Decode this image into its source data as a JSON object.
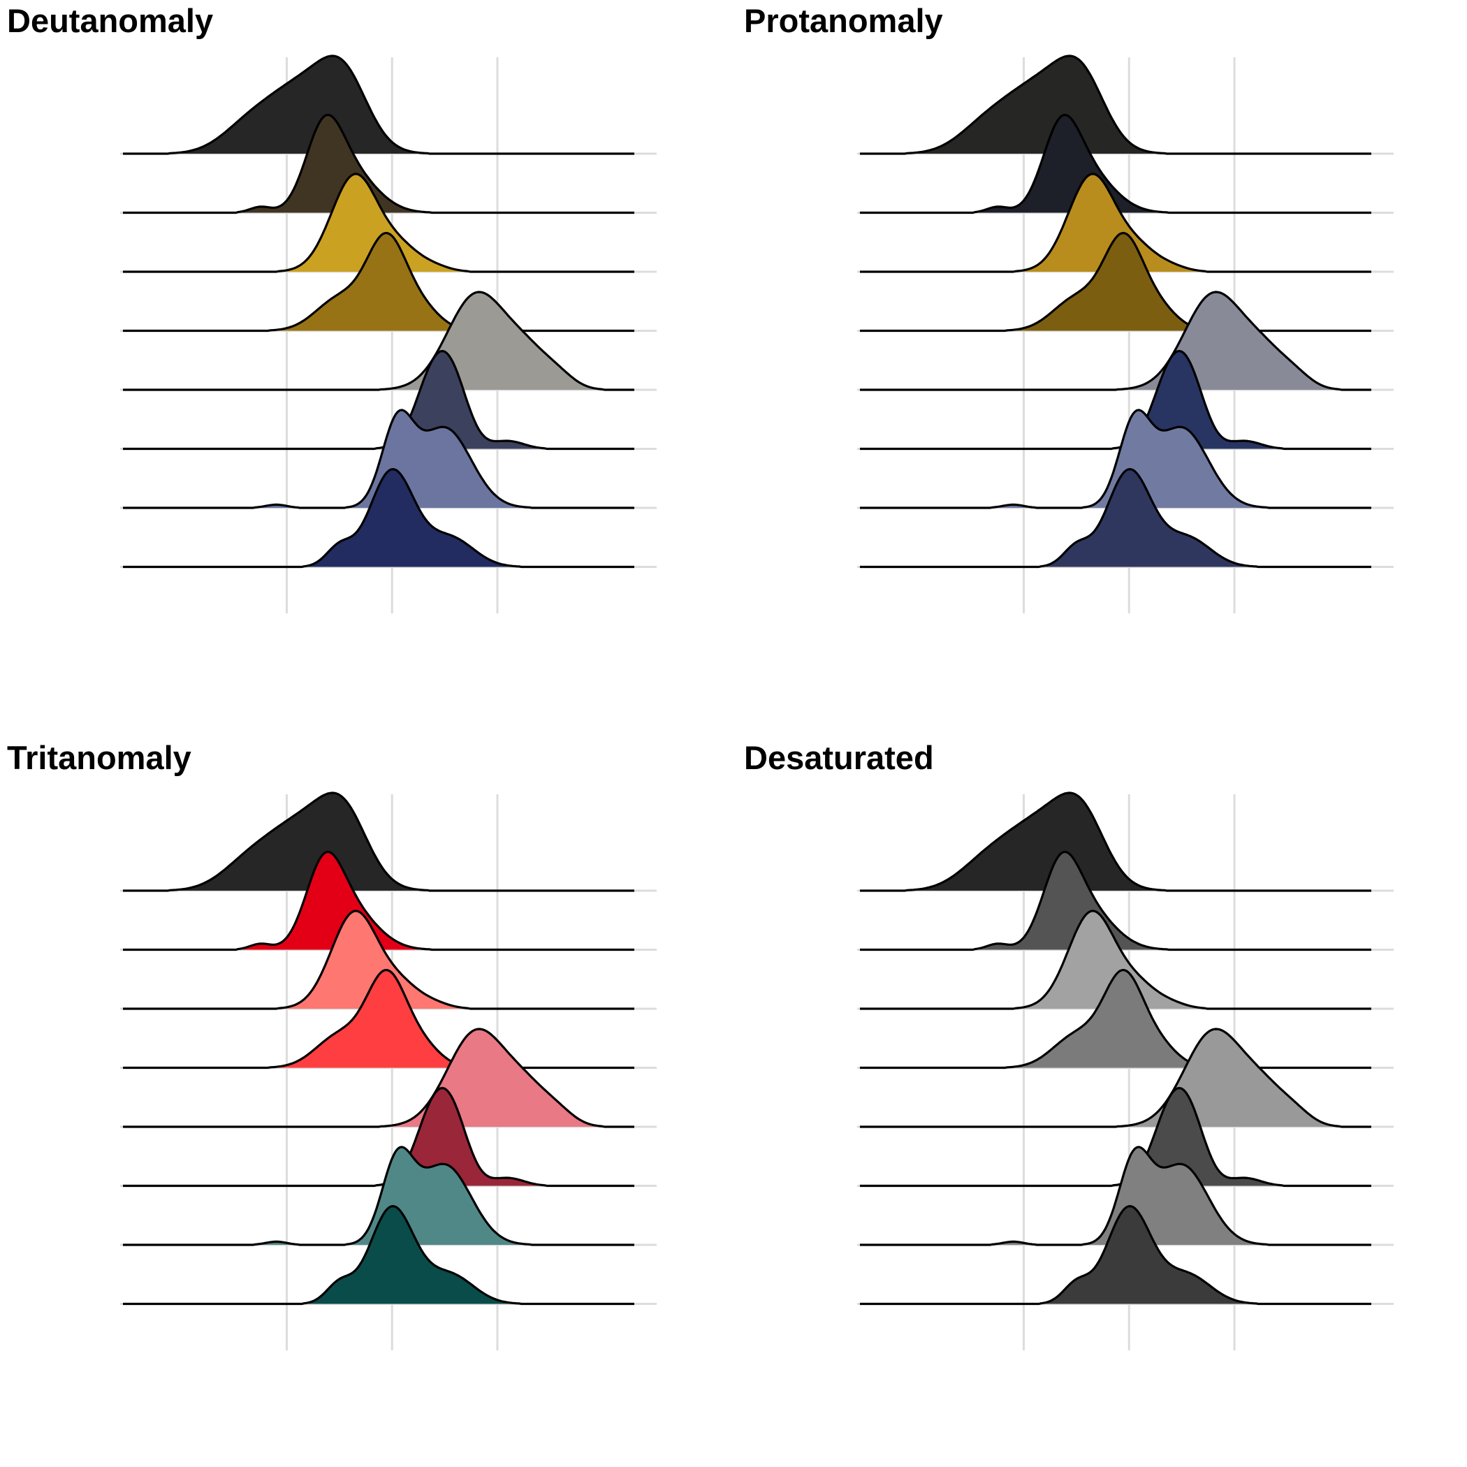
{
  "chart_data": [
    {
      "type": "ridgeline",
      "title": "Deutanomaly",
      "xlim": [
        -2.5,
        6.6
      ],
      "x_gridlines": [
        0,
        2,
        4
      ],
      "grid": "vertical-and-baselines",
      "legend": "none",
      "series": [
        {
          "peaks": [
            [
              0.3,
              0.72,
              1.0
            ],
            [
              1.1,
              0.45,
              0.8
            ],
            [
              -0.8,
              0.5,
              0.25
            ]
          ],
          "fill": "#262626"
        },
        {
          "peaks": [
            [
              0.7,
              0.35,
              1.0
            ],
            [
              1.2,
              0.5,
              0.55
            ],
            [
              -0.5,
              0.2,
              0.08
            ]
          ],
          "fill": "#403522"
        },
        {
          "peaks": [
            [
              1.3,
              0.45,
              1.0
            ],
            [
              2.2,
              0.35,
              0.2
            ],
            [
              2.8,
              0.3,
              0.05
            ]
          ],
          "fill": "#cba122"
        },
        {
          "peaks": [
            [
              1.9,
              0.38,
              1.0
            ],
            [
              1.0,
              0.45,
              0.35
            ],
            [
              2.6,
              0.35,
              0.2
            ]
          ],
          "fill": "#987315"
        },
        {
          "peaks": [
            [
              3.6,
              0.55,
              1.0
            ],
            [
              4.6,
              0.45,
              0.35
            ],
            [
              5.2,
              0.3,
              0.08
            ]
          ],
          "fill": "#9b9a95"
        },
        {
          "peaks": [
            [
              2.8,
              0.35,
              0.95
            ],
            [
              3.2,
              0.3,
              0.55
            ],
            [
              4.2,
              0.3,
              0.1
            ]
          ],
          "fill": "#3c415e"
        },
        {
          "peaks": [
            [
              2.1,
              0.3,
              1.0
            ],
            [
              3.0,
              0.5,
              1.0
            ],
            [
              -0.2,
              0.2,
              0.04
            ]
          ],
          "fill": "#6b75a0"
        },
        {
          "peaks": [
            [
              2.0,
              0.42,
              1.0
            ],
            [
              1.0,
              0.25,
              0.2
            ],
            [
              3.1,
              0.45,
              0.3
            ]
          ],
          "fill": "#222c61"
        }
      ]
    },
    {
      "type": "ridgeline",
      "title": "Protanomaly",
      "xlim": [
        -2.5,
        6.6
      ],
      "x_gridlines": [
        0,
        2,
        4
      ],
      "grid": "vertical-and-baselines",
      "legend": "none",
      "series": [
        {
          "peaks": [
            [
              0.3,
              0.72,
              1.0
            ],
            [
              1.1,
              0.45,
              0.8
            ],
            [
              -0.8,
              0.5,
              0.25
            ]
          ],
          "fill": "#262624"
        },
        {
          "peaks": [
            [
              0.7,
              0.35,
              1.0
            ],
            [
              1.2,
              0.5,
              0.55
            ],
            [
              -0.5,
              0.2,
              0.08
            ]
          ],
          "fill": "#1d1f29"
        },
        {
          "peaks": [
            [
              1.3,
              0.45,
              1.0
            ],
            [
              2.2,
              0.35,
              0.2
            ],
            [
              2.8,
              0.3,
              0.05
            ]
          ],
          "fill": "#b88d1d"
        },
        {
          "peaks": [
            [
              1.9,
              0.38,
              1.0
            ],
            [
              1.0,
              0.45,
              0.35
            ],
            [
              2.6,
              0.35,
              0.2
            ]
          ],
          "fill": "#7c5e10"
        },
        {
          "peaks": [
            [
              3.6,
              0.55,
              1.0
            ],
            [
              4.6,
              0.45,
              0.35
            ],
            [
              5.2,
              0.3,
              0.08
            ]
          ],
          "fill": "#888a98"
        },
        {
          "peaks": [
            [
              2.8,
              0.35,
              0.95
            ],
            [
              3.2,
              0.3,
              0.55
            ],
            [
              4.2,
              0.3,
              0.1
            ]
          ],
          "fill": "#283562"
        },
        {
          "peaks": [
            [
              2.1,
              0.3,
              1.0
            ],
            [
              3.0,
              0.5,
              1.0
            ],
            [
              -0.2,
              0.2,
              0.04
            ]
          ],
          "fill": "#717ba1"
        },
        {
          "peaks": [
            [
              2.0,
              0.42,
              1.0
            ],
            [
              1.0,
              0.25,
              0.2
            ],
            [
              3.1,
              0.45,
              0.3
            ]
          ],
          "fill": "#2f375f"
        }
      ]
    },
    {
      "type": "ridgeline",
      "title": "Tritanomaly",
      "xlim": [
        -2.5,
        6.6
      ],
      "x_gridlines": [
        0,
        2,
        4
      ],
      "grid": "vertical-and-baselines",
      "legend": "none",
      "series": [
        {
          "peaks": [
            [
              0.3,
              0.72,
              1.0
            ],
            [
              1.1,
              0.45,
              0.8
            ],
            [
              -0.8,
              0.5,
              0.25
            ]
          ],
          "fill": "#262626"
        },
        {
          "peaks": [
            [
              0.7,
              0.35,
              1.0
            ],
            [
              1.2,
              0.5,
              0.55
            ],
            [
              -0.5,
              0.2,
              0.08
            ]
          ],
          "fill": "#e30016"
        },
        {
          "peaks": [
            [
              1.3,
              0.45,
              1.0
            ],
            [
              2.2,
              0.35,
              0.2
            ],
            [
              2.8,
              0.3,
              0.05
            ]
          ],
          "fill": "#fe7770"
        },
        {
          "peaks": [
            [
              1.9,
              0.38,
              1.0
            ],
            [
              1.0,
              0.45,
              0.35
            ],
            [
              2.6,
              0.35,
              0.2
            ]
          ],
          "fill": "#fe3e40"
        },
        {
          "peaks": [
            [
              3.6,
              0.55,
              1.0
            ],
            [
              4.6,
              0.45,
              0.35
            ],
            [
              5.2,
              0.3,
              0.08
            ]
          ],
          "fill": "#e87985"
        },
        {
          "peaks": [
            [
              2.8,
              0.35,
              0.95
            ],
            [
              3.2,
              0.3,
              0.55
            ],
            [
              4.2,
              0.3,
              0.1
            ]
          ],
          "fill": "#9a263a"
        },
        {
          "peaks": [
            [
              2.1,
              0.3,
              1.0
            ],
            [
              3.0,
              0.5,
              1.0
            ],
            [
              -0.2,
              0.2,
              0.04
            ]
          ],
          "fill": "#508887"
        },
        {
          "peaks": [
            [
              2.0,
              0.42,
              1.0
            ],
            [
              1.0,
              0.25,
              0.2
            ],
            [
              3.1,
              0.45,
              0.3
            ]
          ],
          "fill": "#0a4c4a"
        }
      ]
    },
    {
      "type": "ridgeline",
      "title": "Desaturated",
      "xlim": [
        -2.5,
        6.6
      ],
      "x_gridlines": [
        0,
        2,
        4
      ],
      "grid": "vertical-and-baselines",
      "legend": "none",
      "series": [
        {
          "peaks": [
            [
              0.3,
              0.72,
              1.0
            ],
            [
              1.1,
              0.45,
              0.8
            ],
            [
              -0.8,
              0.5,
              0.25
            ]
          ],
          "fill": "#262626"
        },
        {
          "peaks": [
            [
              0.7,
              0.35,
              1.0
            ],
            [
              1.2,
              0.5,
              0.55
            ],
            [
              -0.5,
              0.2,
              0.08
            ]
          ],
          "fill": "#545454"
        },
        {
          "peaks": [
            [
              1.3,
              0.45,
              1.0
            ],
            [
              2.2,
              0.35,
              0.2
            ],
            [
              2.8,
              0.3,
              0.05
            ]
          ],
          "fill": "#a2a2a2"
        },
        {
          "peaks": [
            [
              1.9,
              0.38,
              1.0
            ],
            [
              1.0,
              0.45,
              0.35
            ],
            [
              2.6,
              0.35,
              0.2
            ]
          ],
          "fill": "#7b7b7b"
        },
        {
          "peaks": [
            [
              3.6,
              0.55,
              1.0
            ],
            [
              4.6,
              0.45,
              0.35
            ],
            [
              5.2,
              0.3,
              0.08
            ]
          ],
          "fill": "#999999"
        },
        {
          "peaks": [
            [
              2.8,
              0.35,
              0.95
            ],
            [
              3.2,
              0.3,
              0.55
            ],
            [
              4.2,
              0.3,
              0.1
            ]
          ],
          "fill": "#4b4b4b"
        },
        {
          "peaks": [
            [
              2.1,
              0.3,
              1.0
            ],
            [
              3.0,
              0.5,
              1.0
            ],
            [
              -0.2,
              0.2,
              0.04
            ]
          ],
          "fill": "#808080"
        },
        {
          "peaks": [
            [
              2.0,
              0.42,
              1.0
            ],
            [
              1.0,
              0.25,
              0.2
            ],
            [
              3.1,
              0.45,
              0.3
            ]
          ],
          "fill": "#3b3b3b"
        }
      ]
    }
  ]
}
